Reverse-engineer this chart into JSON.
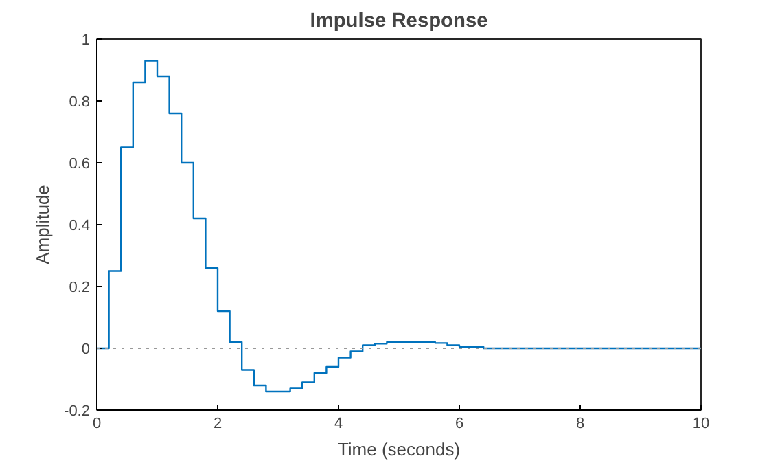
{
  "chart_data": {
    "type": "step",
    "title": "Impulse Response",
    "xlabel": "Time (seconds)",
    "ylabel": "Amplitude",
    "x": [
      0,
      0.2,
      0.4,
      0.6,
      0.8,
      1.0,
      1.2,
      1.4,
      1.6,
      1.8,
      2.0,
      2.2,
      2.4,
      2.6,
      2.8,
      3.0,
      3.2,
      3.4,
      3.6,
      3.8,
      4.0,
      4.2,
      4.4,
      4.6,
      4.8,
      5.0,
      5.2,
      5.4,
      5.6,
      5.8,
      6.0,
      6.2,
      6.4,
      10
    ],
    "series": [
      {
        "color": "#0072bd",
        "values": [
          0,
          0.25,
          0.65,
          0.86,
          0.93,
          0.88,
          0.76,
          0.6,
          0.42,
          0.26,
          0.12,
          0.02,
          -0.07,
          -0.12,
          -0.14,
          -0.14,
          -0.13,
          -0.11,
          -0.08,
          -0.06,
          -0.03,
          -0.01,
          0.01,
          0.015,
          0.02,
          0.02,
          0.02,
          0.02,
          0.017,
          0.01,
          0.005,
          0.005,
          0,
          0
        ]
      }
    ],
    "xlim": [
      0,
      10
    ],
    "xticks": [
      0,
      2,
      4,
      6,
      8,
      10
    ],
    "ylim": [
      -0.2,
      1
    ],
    "yticks": [
      -0.2,
      0,
      0.2,
      0.4,
      0.6,
      0.8,
      1
    ],
    "ref_lines": [
      {
        "axis": "y",
        "value": 0,
        "color": "#999999",
        "line_style": "dotted"
      }
    ],
    "grid": false
  }
}
